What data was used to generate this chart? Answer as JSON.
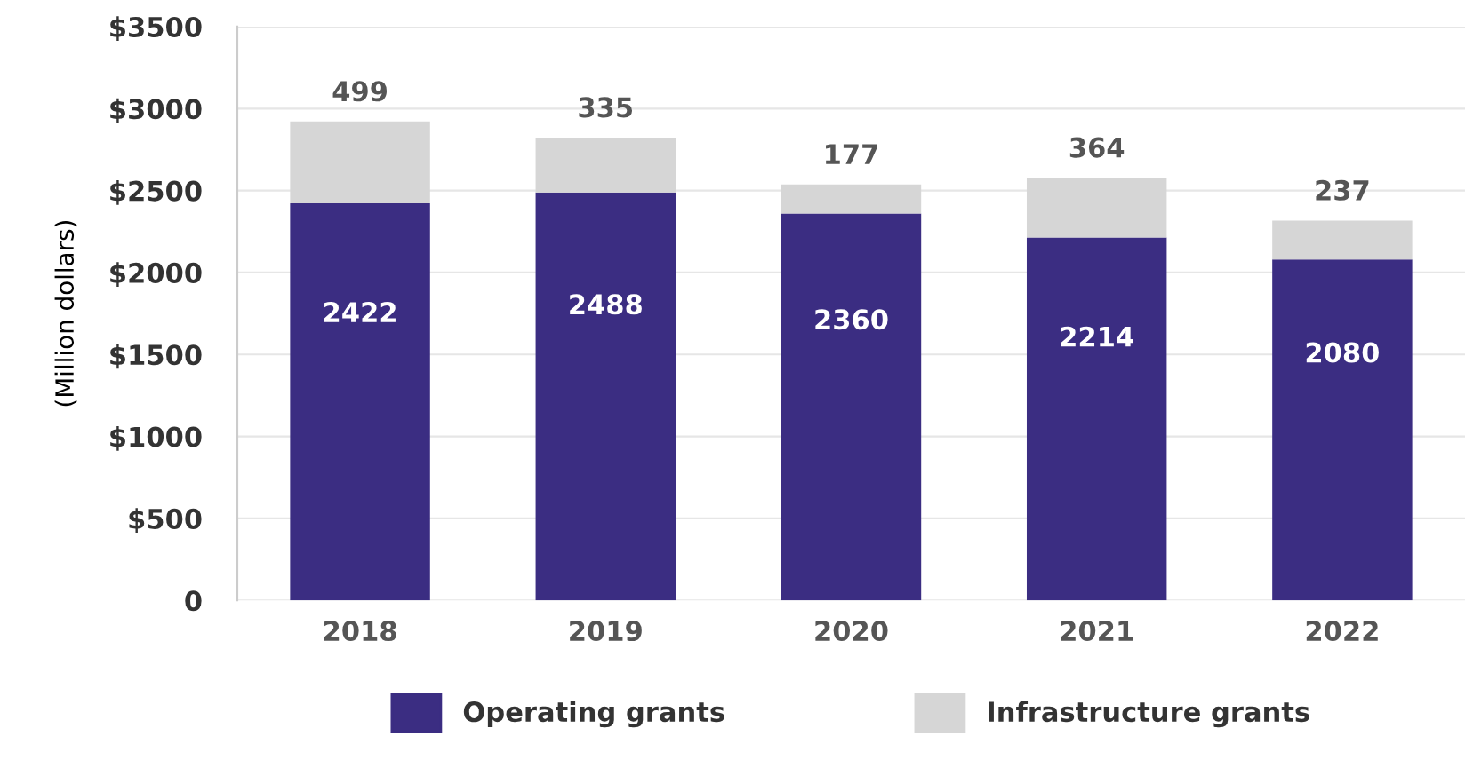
{
  "chart_data": {
    "type": "bar",
    "stacked": true,
    "categories": [
      "2018",
      "2019",
      "2020",
      "2021",
      "2022"
    ],
    "ylabel": "(Million dollars)",
    "series": [
      {
        "name": "Operating grants",
        "color": "#3b2d82",
        "values": [
          2422,
          2488,
          2360,
          2214,
          2080
        ]
      },
      {
        "name": "Infrastructure grants",
        "color": "#d6d6d6",
        "values": [
          499,
          335,
          177,
          364,
          237
        ]
      }
    ],
    "ylim": [
      0,
      3500
    ],
    "yticks": [
      0,
      {
        "value": 500,
        "label": "$500"
      },
      {
        "value": 1000,
        "label": "$1000"
      },
      {
        "value": 1500,
        "label": "$1500"
      },
      {
        "value": 2000,
        "label": "$2000"
      },
      {
        "value": 2500,
        "label": "$2500"
      },
      {
        "value": 3000,
        "label": "$3000"
      },
      {
        "value": 3500,
        "label": "$3500"
      }
    ],
    "grid": "y",
    "legend": "bottom",
    "data_labels": true
  }
}
